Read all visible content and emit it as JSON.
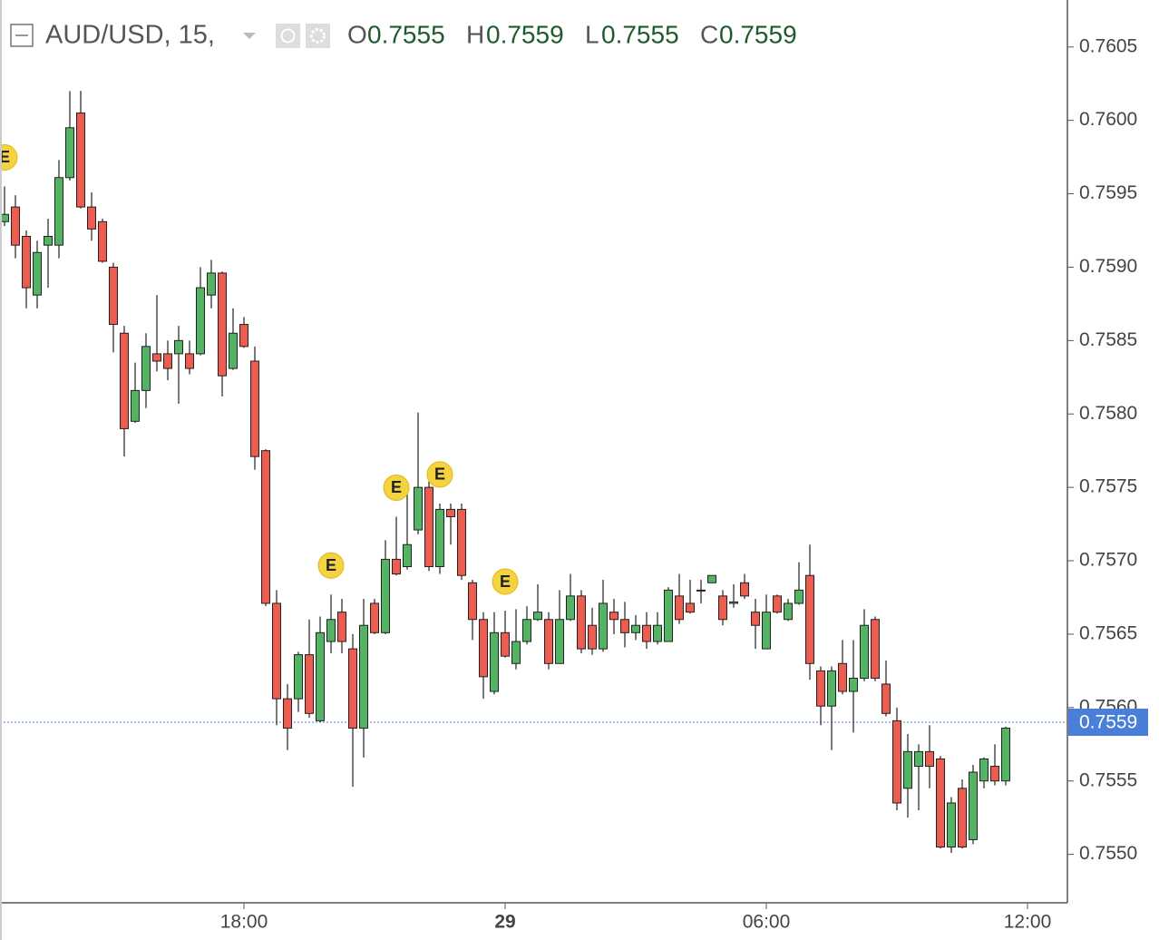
{
  "chart_data": {
    "type": "candlestick",
    "legend": {
      "symbol": "AUD/USD, 15,",
      "open_label": "O",
      "open": "0.7555",
      "high_label": "H",
      "high": "0.7559",
      "low_label": "L",
      "low": "0.7555",
      "close_label": "C",
      "close": "0.7559"
    },
    "categories": [
      "12:30",
      "12:45",
      "13:00",
      "13:15",
      "13:30",
      "13:45",
      "14:00",
      "14:15",
      "14:30",
      "14:45",
      "15:00",
      "15:15",
      "15:30",
      "15:45",
      "16:00",
      "16:15",
      "16:30",
      "16:45",
      "17:00",
      "17:15",
      "17:30",
      "17:45",
      "18:00",
      "18:15",
      "18:30",
      "18:45",
      "19:00",
      "19:15",
      "19:30",
      "19:45",
      "20:00",
      "20:15",
      "20:30",
      "20:45",
      "21:00",
      "21:15",
      "21:30",
      "21:45",
      "22:00",
      "22:15",
      "22:30",
      "22:45",
      "23:00",
      "23:15",
      "23:30",
      "23:45",
      "00:00",
      "00:15",
      "00:30",
      "00:45",
      "01:00",
      "01:15",
      "01:30",
      "01:45",
      "02:00",
      "02:15",
      "02:30",
      "02:45",
      "03:00",
      "03:15",
      "03:30",
      "03:45",
      "04:00",
      "04:15",
      "04:30",
      "04:45",
      "05:00",
      "05:15",
      "05:30",
      "05:45",
      "06:00",
      "06:15",
      "06:30",
      "06:45",
      "07:00",
      "07:15",
      "07:30",
      "07:45",
      "08:00",
      "08:15",
      "08:30",
      "08:45",
      "09:00",
      "09:15",
      "09:30",
      "09:45",
      "10:00",
      "10:15",
      "10:30",
      "10:45",
      "11:00",
      "11:15",
      "11:30"
    ],
    "open": [
      0.75931,
      0.75941,
      0.75921,
      0.75881,
      0.75915,
      0.75915,
      0.75961,
      0.76005,
      0.75941,
      0.75931,
      0.759,
      0.75855,
      0.75795,
      0.75816,
      0.75841,
      0.75841,
      0.75841,
      0.75841,
      0.75841,
      0.75881,
      0.75896,
      0.75831,
      0.75861,
      0.75836,
      0.75775,
      0.75671,
      0.75606,
      0.75606,
      0.75636,
      0.75591,
      0.75645,
      0.75665,
      0.7564,
      0.75586,
      0.75671,
      0.75651,
      0.75701,
      0.75696,
      0.75721,
      0.7575,
      0.75696,
      0.75735,
      0.75735,
      0.75685,
      0.7566,
      0.75611,
      0.75651,
      0.7563,
      0.75645,
      0.7566,
      0.7566,
      0.7563,
      0.7566,
      0.75676,
      0.75656,
      0.7564,
      0.75665,
      0.7566,
      0.75651,
      0.75656,
      0.75645,
      0.75645,
      0.75676,
      0.75671,
      0.7568,
      0.75685,
      0.75676,
      0.75671,
      0.75685,
      0.75665,
      0.7564,
      0.75676,
      0.7566,
      0.75671,
      0.7569,
      0.75625,
      0.75601,
      0.7563,
      0.75611,
      0.7562,
      0.7566,
      0.75616,
      0.75591,
      0.75545,
      0.7556,
      0.7557,
      0.75565,
      0.75505,
      0.75545,
      0.7551,
      0.7555,
      0.7556,
      0.7555
    ],
    "high": [
      0.75955,
      0.75949,
      0.75925,
      0.75918,
      0.75933,
      0.75973,
      0.7602,
      0.7602,
      0.75951,
      0.75933,
      0.75903,
      0.7586,
      0.75835,
      0.75855,
      0.75881,
      0.7585,
      0.7586,
      0.7585,
      0.759,
      0.75905,
      0.75897,
      0.75872,
      0.75866,
      0.75846,
      0.75776,
      0.7568,
      0.75616,
      0.75638,
      0.7566,
      0.75662,
      0.75677,
      0.75674,
      0.7565,
      0.75674,
      0.75674,
      0.75714,
      0.7573,
      0.75749,
      0.75801,
      0.75754,
      0.75739,
      0.75739,
      0.75739,
      0.75687,
      0.75665,
      0.75665,
      0.75666,
      0.75667,
      0.75669,
      0.75684,
      0.75665,
      0.7568,
      0.75691,
      0.7568,
      0.75668,
      0.75687,
      0.75674,
      0.75672,
      0.75663,
      0.75665,
      0.75665,
      0.75682,
      0.75691,
      0.75687,
      0.75687,
      0.7569,
      0.7568,
      0.75684,
      0.75691,
      0.75674,
      0.75677,
      0.75677,
      0.75674,
      0.75699,
      0.75711,
      0.75628,
      0.75628,
      0.75646,
      0.75646,
      0.75667,
      0.75662,
      0.75632,
      0.756,
      0.75582,
      0.75575,
      0.75588,
      0.75567,
      0.75539,
      0.75551,
      0.75561,
      0.75566,
      0.75575,
      0.75587
    ],
    "low": [
      0.75928,
      0.75906,
      0.75872,
      0.75872,
      0.75886,
      0.75906,
      0.75959,
      0.7594,
      0.75918,
      0.75903,
      0.75842,
      0.75771,
      0.75794,
      0.75804,
      0.75829,
      0.75823,
      0.75807,
      0.75827,
      0.7584,
      0.75872,
      0.75812,
      0.7583,
      0.75845,
      0.75762,
      0.75669,
      0.75588,
      0.75571,
      0.75597,
      0.75593,
      0.7559,
      0.75637,
      0.75637,
      0.75546,
      0.75566,
      0.7565,
      0.7565,
      0.7569,
      0.75694,
      0.75718,
      0.75693,
      0.75691,
      0.75711,
      0.75687,
      0.75646,
      0.75606,
      0.75609,
      0.75634,
      0.75626,
      0.75643,
      0.75659,
      0.75626,
      0.7563,
      0.75659,
      0.75637,
      0.75636,
      0.75638,
      0.7565,
      0.75641,
      0.75646,
      0.7564,
      0.75643,
      0.75645,
      0.75657,
      0.75664,
      0.75671,
      0.75685,
      0.75656,
      0.75668,
      0.75674,
      0.7564,
      0.7564,
      0.75664,
      0.75659,
      0.7567,
      0.75619,
      0.75588,
      0.75571,
      0.75609,
      0.75583,
      0.75618,
      0.75618,
      0.75594,
      0.7553,
      0.75525,
      0.7553,
      0.75545,
      0.75504,
      0.75501,
      0.75504,
      0.75507,
      0.75545,
      0.75547,
      0.75547
    ],
    "close": [
      0.75936,
      0.75915,
      0.75886,
      0.7591,
      0.75921,
      0.75961,
      0.75995,
      0.75941,
      0.75926,
      0.75904,
      0.75861,
      0.7579,
      0.75816,
      0.75846,
      0.75836,
      0.75831,
      0.7585,
      0.75831,
      0.75886,
      0.75896,
      0.75826,
      0.75855,
      0.75846,
      0.75771,
      0.75671,
      0.75606,
      0.75586,
      0.75636,
      0.75596,
      0.75651,
      0.7566,
      0.75645,
      0.75586,
      0.75656,
      0.75651,
      0.75701,
      0.75691,
      0.75711,
      0.7575,
      0.75696,
      0.75735,
      0.7573,
      0.7569,
      0.7566,
      0.75621,
      0.75651,
      0.75635,
      0.75645,
      0.7566,
      0.75665,
      0.7563,
      0.7566,
      0.75676,
      0.7564,
      0.7564,
      0.75671,
      0.7566,
      0.75651,
      0.75656,
      0.75645,
      0.75656,
      0.7568,
      0.7566,
      0.75665,
      0.7568,
      0.7569,
      0.7566,
      0.75672,
      0.75676,
      0.75656,
      0.75665,
      0.75665,
      0.75671,
      0.7568,
      0.7563,
      0.75601,
      0.75625,
      0.75611,
      0.7562,
      0.75656,
      0.7562,
      0.75596,
      0.75535,
      0.7557,
      0.7557,
      0.7556,
      0.75505,
      0.75535,
      0.75505,
      0.75556,
      0.75565,
      0.7555,
      0.75586
    ],
    "up_color": "#53b463",
    "down_color": "#ee5b4f",
    "ylim": [
      0.75467,
      0.76082
    ],
    "yticks": [
      {
        "value": 0.755,
        "label": "0.7550"
      },
      {
        "value": 0.7555,
        "label": "0.7555"
      },
      {
        "value": 0.756,
        "label": "0.7560"
      },
      {
        "value": 0.7565,
        "label": "0.7565"
      },
      {
        "value": 0.757,
        "label": "0.7570"
      },
      {
        "value": 0.7575,
        "label": "0.7575"
      },
      {
        "value": 0.758,
        "label": "0.7580"
      },
      {
        "value": 0.7585,
        "label": "0.7585"
      },
      {
        "value": 0.759,
        "label": "0.7590"
      },
      {
        "value": 0.7595,
        "label": "0.7595"
      },
      {
        "value": 0.76,
        "label": "0.7600"
      },
      {
        "value": 0.7605,
        "label": "0.7605"
      }
    ],
    "xticks": [
      "18:00",
      {
        "value": "00:00",
        "label": "29"
      },
      "06:00",
      "12:00"
    ],
    "last_price": {
      "value": 0.7559,
      "label": "0.7559",
      "color": "#4a7fd9"
    },
    "events": [
      {
        "x": "12:30",
        "label": "E"
      },
      {
        "x": "20:00",
        "label": "E"
      },
      {
        "x": "21:30",
        "label": "E"
      },
      {
        "x": "22:30",
        "label": "E"
      },
      {
        "x": "00:00",
        "label": "E"
      }
    ]
  }
}
